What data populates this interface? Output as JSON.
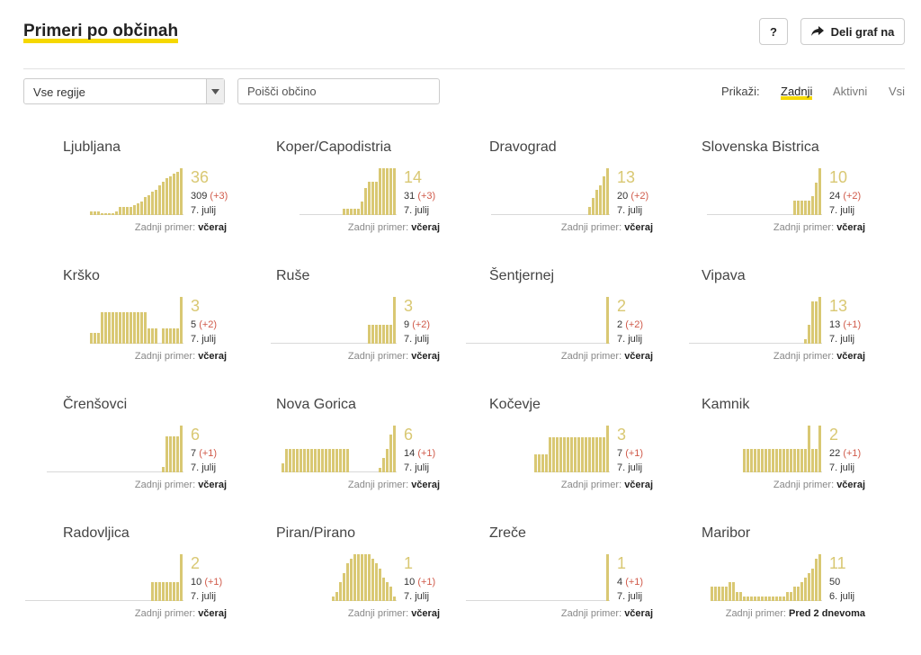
{
  "header": {
    "title": "Primeri po občinah",
    "help_label": "?",
    "share_label": "Deli graf na"
  },
  "filters": {
    "region_value": "Vse regije",
    "search_placeholder": "Poišči občino",
    "show_label": "Prikaži:",
    "options": [
      "Zadnji",
      "Aktivni",
      "Vsi"
    ],
    "active": "Zadnji"
  },
  "colors": {
    "bar": "#d9c873",
    "accent": "#f5d800",
    "delta": "#d05a4a"
  },
  "last_case_label": "Zadnji primer:",
  "municipalities": [
    {
      "name": "Ljubljana",
      "active": "36",
      "total": "309",
      "delta": "(+3)",
      "date": "7. julij",
      "last": "včeraj",
      "bars": [
        2,
        2,
        2,
        1,
        1,
        1,
        1,
        2,
        4,
        4,
        4,
        4,
        5,
        6,
        7,
        9,
        10,
        12,
        13,
        15,
        17,
        19,
        20,
        21,
        22,
        24
      ]
    },
    {
      "name": "Koper/Capodistria",
      "active": "14",
      "total": "31",
      "delta": "(+3)",
      "date": "7. julij",
      "last": "včeraj",
      "bars": [
        0,
        0,
        0,
        0,
        0,
        0,
        0,
        0,
        0,
        0,
        0,
        0,
        1,
        1,
        1,
        1,
        1,
        2,
        4,
        5,
        5,
        5,
        7,
        7,
        7,
        7,
        7
      ]
    },
    {
      "name": "Dravograd",
      "active": "13",
      "total": "20",
      "delta": "(+2)",
      "date": "7. julij",
      "last": "včeraj",
      "bars": [
        0,
        0,
        0,
        0,
        0,
        0,
        0,
        0,
        0,
        0,
        0,
        0,
        0,
        0,
        0,
        0,
        0,
        0,
        0,
        0,
        0,
        0,
        0,
        0,
        0,
        0,
        0,
        2,
        4,
        6,
        7,
        9,
        11
      ]
    },
    {
      "name": "Slovenska Bistrica",
      "active": "10",
      "total": "24",
      "delta": "(+2)",
      "date": "7. julij",
      "last": "včeraj",
      "bars": [
        0,
        0,
        0,
        0,
        0,
        0,
        0,
        0,
        0,
        0,
        0,
        0,
        0,
        0,
        0,
        0,
        0,
        0,
        0,
        0,
        0,
        0,
        0,
        0,
        3,
        3,
        3,
        3,
        3,
        4,
        7,
        10
      ]
    },
    {
      "name": "Krško",
      "active": "3",
      "total": "5",
      "delta": "(+2)",
      "date": "7. julij",
      "last": "včeraj",
      "bars": [
        2,
        2,
        2,
        6,
        6,
        6,
        6,
        6,
        6,
        6,
        6,
        6,
        6,
        6,
        6,
        6,
        3,
        3,
        3,
        0,
        3,
        3,
        3,
        3,
        3,
        9
      ]
    },
    {
      "name": "Ruše",
      "active": "3",
      "total": "9",
      "delta": "(+2)",
      "date": "7. julij",
      "last": "včeraj",
      "bars": [
        0,
        0,
        0,
        0,
        0,
        0,
        0,
        0,
        0,
        0,
        0,
        0,
        0,
        0,
        0,
        0,
        0,
        0,
        0,
        0,
        0,
        0,
        0,
        0,
        0,
        0,
        0,
        2,
        2,
        2,
        2,
        2,
        2,
        2,
        5
      ]
    },
    {
      "name": "Šentjernej",
      "active": "2",
      "total": "2",
      "delta": "(+2)",
      "date": "7. julij",
      "last": "včeraj",
      "bars": [
        0,
        0,
        0,
        0,
        0,
        0,
        0,
        0,
        0,
        0,
        0,
        0,
        0,
        0,
        0,
        0,
        0,
        0,
        0,
        0,
        0,
        0,
        0,
        0,
        0,
        0,
        0,
        0,
        0,
        0,
        0,
        0,
        0,
        0,
        0,
        0,
        0,
        0,
        0,
        2
      ]
    },
    {
      "name": "Vipava",
      "active": "13",
      "total": "13",
      "delta": "(+1)",
      "date": "7. julij",
      "last": "včeraj",
      "bars": [
        0,
        0,
        0,
        0,
        0,
        0,
        0,
        0,
        0,
        0,
        0,
        0,
        0,
        0,
        0,
        0,
        0,
        0,
        0,
        0,
        0,
        0,
        0,
        0,
        0,
        0,
        0,
        0,
        0,
        0,
        0,
        0,
        1,
        4,
        9,
        9,
        10
      ]
    },
    {
      "name": "Črenšovci",
      "active": "6",
      "total": "7",
      "delta": "(+1)",
      "date": "7. julij",
      "last": "včeraj",
      "bars": [
        0,
        0,
        0,
        0,
        0,
        0,
        0,
        0,
        0,
        0,
        0,
        0,
        0,
        0,
        0,
        0,
        0,
        0,
        0,
        0,
        0,
        0,
        0,
        0,
        0,
        0,
        0,
        0,
        0,
        0,
        0,
        0,
        1,
        7,
        7,
        7,
        7,
        9
      ]
    },
    {
      "name": "Nova Gorica",
      "active": "6",
      "total": "14",
      "delta": "(+1)",
      "date": "7. julij",
      "last": "včeraj",
      "bars": [
        2,
        5,
        5,
        5,
        5,
        5,
        5,
        5,
        5,
        5,
        5,
        5,
        5,
        5,
        5,
        5,
        5,
        5,
        5,
        0,
        0,
        0,
        0,
        0,
        0,
        0,
        0,
        1,
        3,
        5,
        8,
        10
      ]
    },
    {
      "name": "Kočevje",
      "active": "3",
      "total": "7",
      "delta": "(+1)",
      "date": "7. julij",
      "last": "včeraj",
      "bars": [
        3,
        3,
        3,
        3,
        6,
        6,
        6,
        6,
        6,
        6,
        6,
        6,
        6,
        6,
        6,
        6,
        6,
        6,
        6,
        6,
        8
      ]
    },
    {
      "name": "Kamnik",
      "active": "2",
      "total": "22",
      "delta": "(+1)",
      "date": "7. julij",
      "last": "včeraj",
      "bars": [
        5,
        5,
        5,
        5,
        5,
        5,
        5,
        5,
        5,
        5,
        5,
        5,
        5,
        5,
        5,
        5,
        5,
        5,
        10,
        5,
        5,
        10
      ]
    },
    {
      "name": "Radovljica",
      "active": "2",
      "total": "10",
      "delta": "(+1)",
      "date": "7. julij",
      "last": "včeraj",
      "bars": [
        0,
        0,
        0,
        0,
        0,
        0,
        0,
        0,
        0,
        0,
        0,
        0,
        0,
        0,
        0,
        0,
        0,
        0,
        0,
        0,
        0,
        0,
        0,
        0,
        0,
        0,
        0,
        0,
        0,
        0,
        0,
        0,
        0,
        0,
        0,
        4,
        4,
        4,
        4,
        4,
        4,
        4,
        4,
        10
      ]
    },
    {
      "name": "Piran/Pirano",
      "active": "1",
      "total": "10",
      "delta": "(+1)",
      "date": "7. julij",
      "last": "včeraj",
      "bars": [
        1,
        2,
        4,
        6,
        8,
        9,
        10,
        10,
        10,
        10,
        10,
        9,
        8,
        7,
        5,
        4,
        3,
        1
      ]
    },
    {
      "name": "Zreče",
      "active": "1",
      "total": "4",
      "delta": "(+1)",
      "date": "7. julij",
      "last": "včeraj",
      "bars": [
        0,
        0,
        0,
        0,
        0,
        0,
        0,
        0,
        0,
        0,
        0,
        0,
        0,
        0,
        0,
        0,
        0,
        0,
        0,
        0,
        0,
        0,
        0,
        0,
        0,
        0,
        0,
        0,
        0,
        0,
        0,
        0,
        0,
        0,
        0,
        0,
        0,
        0,
        0,
        2
      ]
    },
    {
      "name": "Maribor",
      "active": "11",
      "total": "50",
      "delta": "",
      "date": "6. julij",
      "last": "Pred 2 dnevoma",
      "bars": [
        3,
        3,
        3,
        3,
        3,
        4,
        4,
        2,
        2,
        1,
        1,
        1,
        1,
        1,
        1,
        1,
        1,
        1,
        1,
        1,
        1,
        2,
        2,
        3,
        3,
        4,
        5,
        6,
        7,
        9,
        10
      ]
    }
  ]
}
